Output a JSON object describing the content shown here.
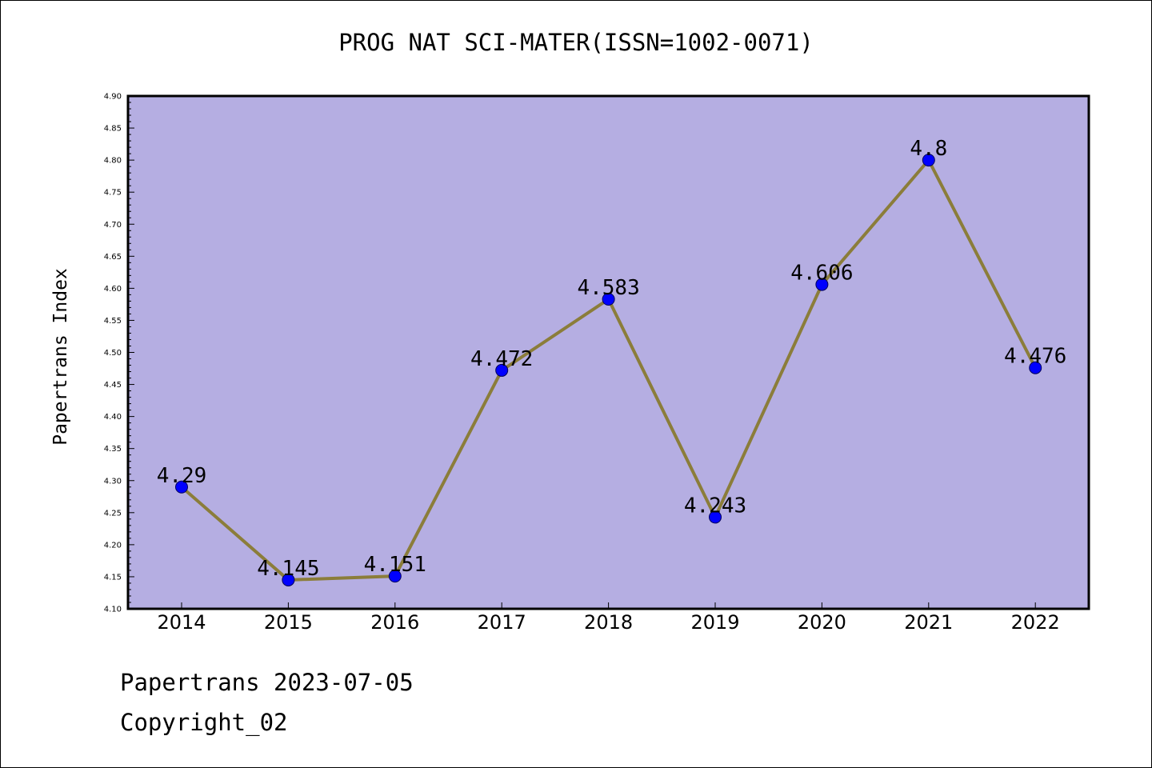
{
  "chart_data": {
    "type": "line",
    "title": "PROG NAT SCI-MATER(ISSN=1002-0071)",
    "ylabel": "Papertrans Index",
    "xlabel": "",
    "categories": [
      "2014",
      "2015",
      "2016",
      "2017",
      "2018",
      "2019",
      "2020",
      "2021",
      "2022"
    ],
    "series": [
      {
        "values": [
          4.29,
          4.145,
          4.151,
          4.472,
          4.583,
          4.243,
          4.606,
          4.8,
          4.476
        ]
      }
    ],
    "data_labels": [
      "4.29",
      "4.145",
      "4.151",
      "4.472",
      "4.583",
      "4.243",
      "4.606",
      "4.8",
      "4.476"
    ],
    "ylim": [
      4.1,
      4.9
    ],
    "yticks": [
      "4.10",
      "4.15",
      "4.20",
      "4.25",
      "4.30",
      "4.35",
      "4.40",
      "4.45",
      "4.50",
      "4.55",
      "4.60",
      "4.65",
      "4.70",
      "4.75",
      "4.80",
      "4.85",
      "4.90"
    ],
    "grid": false,
    "colors": {
      "plot_background": "#b5aee2",
      "line": "#8b7d3a",
      "marker": "#0000ff"
    }
  },
  "footer": {
    "line1": "Papertrans 2023-07-05",
    "line2": "Copyright_02"
  }
}
